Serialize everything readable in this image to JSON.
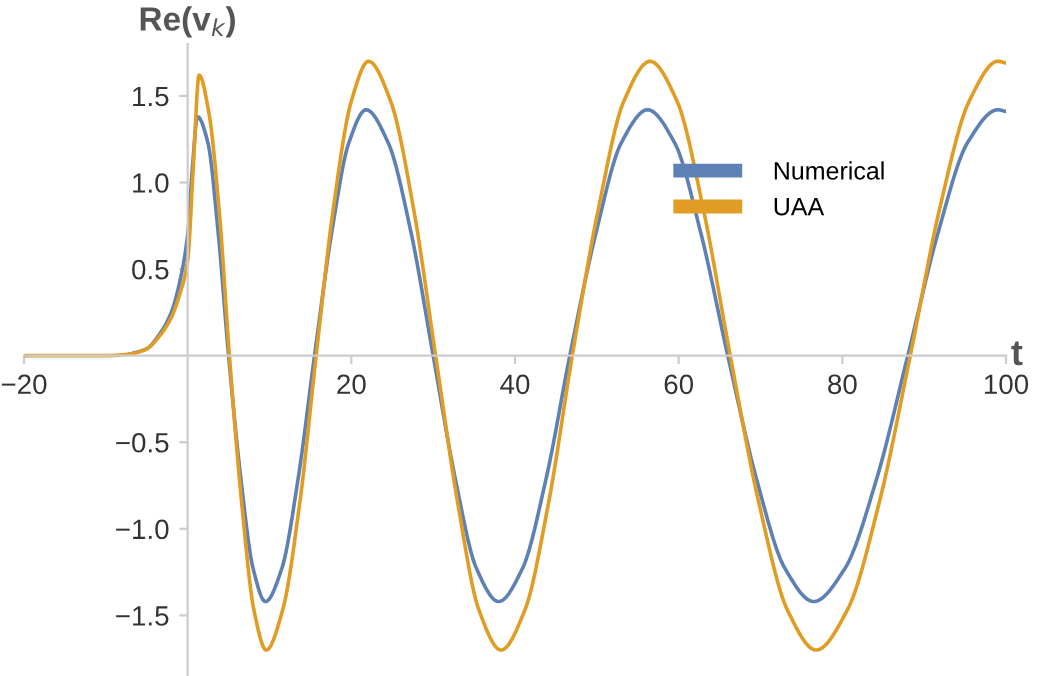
{
  "chart_data": {
    "type": "line",
    "xlabel": "t",
    "ylabel": "Re(v$_{k}$)",
    "xlim": [
      -20,
      100
    ],
    "ylim": [
      -1.85,
      1.8
    ],
    "xticks": [
      {
        "value": -20,
        "label": "−20"
      },
      20,
      40,
      60,
      80,
      100
    ],
    "yticks": [
      {
        "value": -1.5,
        "label": "−1.5"
      },
      {
        "value": -1.0,
        "label": "−1.0"
      },
      {
        "value": -0.5,
        "label": "−0.5"
      },
      {
        "value": 0.5,
        "label": "0.5"
      },
      {
        "value": 1.0,
        "label": "1.0"
      },
      {
        "value": 1.5,
        "label": "1.5"
      }
    ],
    "grid": false,
    "legend": "top right",
    "marker": "none",
    "line_style": "solid",
    "series": [
      {
        "name": "Numerical",
        "color": "#5e81b5",
        "x": [
          -7,
          -5,
          -3.5,
          -2,
          -1,
          0,
          0.6,
          1.2,
          2.47,
          3.73,
          5,
          6.5,
          8,
          9.5,
          11.5,
          13.5,
          15.5,
          17.6,
          19.7,
          21.8,
          24.5,
          27.3,
          30,
          32.7,
          35.3,
          38,
          40.9,
          43.8,
          46.7,
          49.9,
          53,
          56.2,
          59.5,
          62.7,
          66,
          69.5,
          73,
          76.5,
          80.3,
          84.2,
          88,
          91.7,
          95.3,
          99,
          100
        ],
        "values": [
          0.01,
          0.04,
          0.12,
          0.25,
          0.42,
          0.7,
          1.1,
          1.38,
          1.23,
          0.71,
          0,
          -0.71,
          -1.23,
          -1.42,
          -1.23,
          -0.71,
          0,
          0.71,
          1.23,
          1.42,
          1.23,
          0.71,
          0,
          -0.71,
          -1.23,
          -1.42,
          -1.23,
          -0.71,
          0,
          0.71,
          1.23,
          1.42,
          1.23,
          0.71,
          0,
          -0.71,
          -1.23,
          -1.42,
          -1.23,
          -0.71,
          0,
          0.71,
          1.23,
          1.42,
          1.41
        ]
      },
      {
        "name": "UAA",
        "color": "#e19c24",
        "x": [
          -20,
          -10,
          -7,
          -5,
          -3.5,
          -2,
          -1,
          0,
          0.7,
          1.4,
          2.6,
          3.9,
          5.1,
          6.6,
          8.1,
          9.6,
          11.6,
          13.7,
          15.7,
          17.8,
          20,
          22.1,
          24.8,
          27.6,
          30.3,
          33,
          35.6,
          38.3,
          41.2,
          44.1,
          47,
          50.2,
          53.3,
          56.5,
          59.8,
          63,
          66.3,
          69.8,
          73.3,
          76.8,
          80.6,
          84.5,
          88.3,
          91.9,
          95.5,
          99,
          100
        ],
        "values": [
          0,
          0,
          0.01,
          0.04,
          0.11,
          0.22,
          0.35,
          0.55,
          1.1,
          1.62,
          1.4,
          0.81,
          0,
          -0.85,
          -1.47,
          -1.7,
          -1.47,
          -0.85,
          0,
          0.85,
          1.47,
          1.7,
          1.47,
          0.85,
          0,
          -0.85,
          -1.47,
          -1.7,
          -1.47,
          -0.85,
          0,
          0.85,
          1.47,
          1.7,
          1.47,
          0.85,
          0,
          -0.85,
          -1.47,
          -1.7,
          -1.47,
          -0.85,
          0,
          0.85,
          1.47,
          1.7,
          1.69
        ]
      }
    ]
  }
}
